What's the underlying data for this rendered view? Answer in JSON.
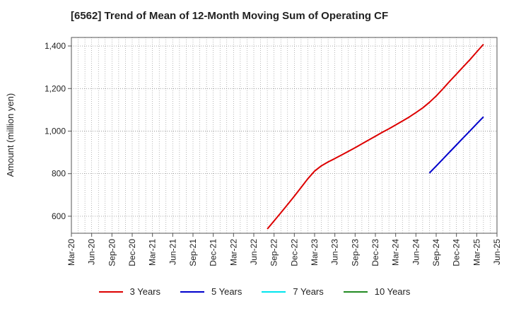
{
  "chart_data": {
    "type": "line",
    "title": "[6562]  Trend of Mean of 12-Month Moving Sum of Operating CF",
    "ylabel": "Amount (million yen)",
    "xlabel": "",
    "categories": [
      "Mar-20",
      "Jun-20",
      "Sep-20",
      "Dec-20",
      "Mar-21",
      "Jun-21",
      "Sep-21",
      "Dec-21",
      "Mar-22",
      "Jun-22",
      "Sep-22",
      "Dec-22",
      "Mar-23",
      "Jun-23",
      "Sep-23",
      "Dec-23",
      "Mar-24",
      "Jun-24",
      "Sep-24",
      "Dec-24",
      "Mar-25",
      "Jun-25"
    ],
    "ylim": [
      520,
      1440
    ],
    "yticks": [
      600,
      800,
      1000,
      1200,
      1400
    ],
    "ytick_labels": [
      "600",
      "800",
      "1,000",
      "1,200",
      "1,400"
    ],
    "grid": true,
    "legend_position": "bottom",
    "series": [
      {
        "name": "3 Years",
        "color": "#dd0000",
        "points": [
          [
            "Aug-22",
            540
          ],
          [
            "Sep-22",
            578
          ],
          [
            "Oct-22",
            616
          ],
          [
            "Nov-22",
            655
          ],
          [
            "Dec-22",
            694
          ],
          [
            "Jan-23",
            735
          ],
          [
            "Feb-23",
            776
          ],
          [
            "Mar-23",
            812
          ],
          [
            "Apr-23",
            837
          ],
          [
            "May-23",
            855
          ],
          [
            "Jun-23",
            871
          ],
          [
            "Jul-23",
            888
          ],
          [
            "Aug-23",
            905
          ],
          [
            "Sep-23",
            922
          ],
          [
            "Oct-23",
            940
          ],
          [
            "Nov-23",
            958
          ],
          [
            "Dec-23",
            976
          ],
          [
            "Jan-24",
            994
          ],
          [
            "Feb-24",
            1011
          ],
          [
            "Mar-24",
            1029
          ],
          [
            "Apr-24",
            1047
          ],
          [
            "May-24",
            1066
          ],
          [
            "Jun-24",
            1087
          ],
          [
            "Jul-24",
            1109
          ],
          [
            "Aug-24",
            1135
          ],
          [
            "Sep-24",
            1165
          ],
          [
            "Oct-24",
            1199
          ],
          [
            "Nov-24",
            1234
          ],
          [
            "Dec-24",
            1268
          ],
          [
            "Jan-25",
            1302
          ],
          [
            "Feb-25",
            1336
          ],
          [
            "Mar-25",
            1372
          ],
          [
            "Apr-25",
            1408
          ]
        ]
      },
      {
        "name": "5 Years",
        "color": "#0000cc",
        "points": [
          [
            "Aug-24",
            803
          ],
          [
            "Sep-24",
            836
          ],
          [
            "Oct-24",
            869
          ],
          [
            "Nov-24",
            902
          ],
          [
            "Dec-24",
            935
          ],
          [
            "Jan-25",
            968
          ],
          [
            "Feb-25",
            1001
          ],
          [
            "Mar-25",
            1034
          ],
          [
            "Apr-25",
            1067
          ]
        ]
      },
      {
        "name": "7 Years",
        "color": "#00e5ee",
        "points": []
      },
      {
        "name": "10 Years",
        "color": "#228b22",
        "points": []
      }
    ]
  }
}
